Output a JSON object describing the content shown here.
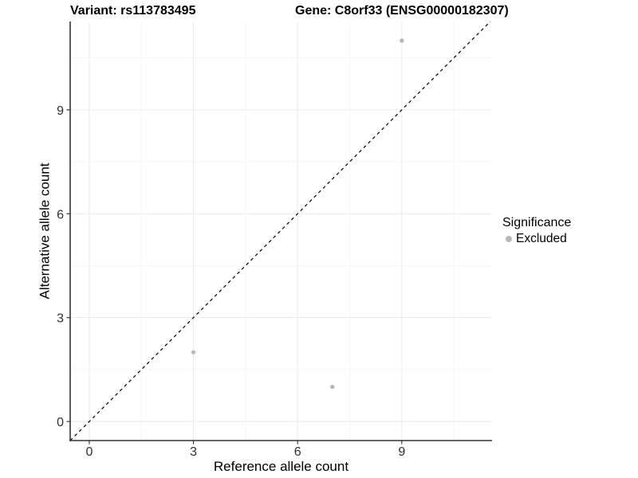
{
  "header": {
    "title_left": "Variant: rs113783495",
    "title_right": "Gene: C8orf33 (ENSG00000182307)"
  },
  "chart_data": {
    "type": "scatter",
    "title": "Variant: rs113783495 / Gene: C8orf33 (ENSG00000182307)",
    "xlabel": "Reference allele count",
    "ylabel": "Alternative allele count",
    "xlim": [
      -0.55,
      11.6
    ],
    "ylim": [
      -0.55,
      11.55
    ],
    "x_breaks": [
      0,
      3,
      6,
      9
    ],
    "y_breaks": [
      0,
      3,
      6,
      9
    ],
    "x_minor_breaks": [
      1.5,
      4.5,
      7.5,
      10.5
    ],
    "y_minor_breaks": [
      1.5,
      4.5,
      7.5,
      10.5
    ],
    "grid": true,
    "points": [
      {
        "x": 3,
        "y": 2,
        "significance": "Excluded"
      },
      {
        "x": 7,
        "y": 1,
        "significance": "Excluded"
      },
      {
        "x": 9,
        "y": 11,
        "significance": "Excluded"
      }
    ],
    "identity_line": {
      "style": "dashed",
      "equation": "y = x"
    },
    "legend": {
      "title": "Significance",
      "position": "right",
      "items": [
        {
          "label": "Excluded",
          "color": "#b9b9b9"
        }
      ]
    },
    "colors": {
      "point": "#b9b9b9",
      "grid_major": "#e9e9e9",
      "grid_minor": "#f5f5f5",
      "axis": "#333333",
      "tick_label": "#303030",
      "identity_line": "#000000"
    }
  }
}
